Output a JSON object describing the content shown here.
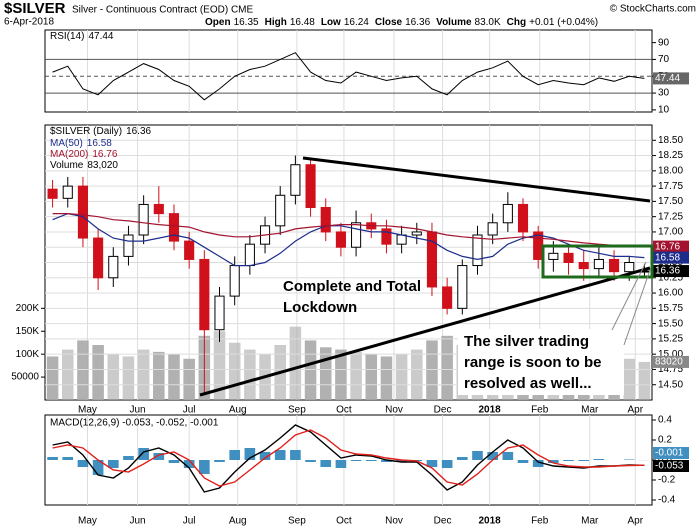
{
  "header": {
    "symbol": "$SILVER",
    "description": "Silver - Continuous Contract (EOD) CME",
    "date": "6-Apr-2018",
    "credit": "© StockCharts.com",
    "quote": [
      {
        "label": "Open",
        "value": 16.35
      },
      {
        "label": "High",
        "value": 16.48
      },
      {
        "label": "Low",
        "value": 16.24
      },
      {
        "label": "Close",
        "value": 16.36
      },
      {
        "label": "Volume",
        "value": "83.0K"
      },
      {
        "label": "Chg",
        "value": "+0.01 (+0.04%)"
      }
    ]
  },
  "chart_data": {
    "type": "candlestick",
    "xlim": [
      -0.5,
      39.5
    ],
    "xticks": [
      {
        "value": 2.3,
        "label": "May"
      },
      {
        "value": 5.6,
        "label": "Jun"
      },
      {
        "value": 9.0,
        "label": "Jul"
      },
      {
        "value": 12.2,
        "label": "Aug"
      },
      {
        "value": 16.1,
        "label": "Sep"
      },
      {
        "value": 19.2,
        "label": "Oct"
      },
      {
        "value": 22.5,
        "label": "Nov"
      },
      {
        "value": 25.7,
        "label": "Dec"
      },
      {
        "value": 28.8,
        "label": "2018"
      },
      {
        "value": 32.1,
        "label": "Feb"
      },
      {
        "value": 35.4,
        "label": "Mar"
      },
      {
        "value": 38.4,
        "label": "Apr"
      }
    ],
    "grid": true,
    "price": {
      "name": "$SILVER (Daily)",
      "up_color": "#000000",
      "down_color": "#d0101a",
      "ylim": [
        14.25,
        18.75
      ],
      "yticks": [
        {
          "value": 14.5,
          "label": "14.50"
        },
        {
          "value": 14.75,
          "label": "14.75"
        },
        {
          "value": 15,
          "label": "15.00"
        },
        {
          "value": 15.25,
          "label": "15.25"
        },
        {
          "value": 15.5,
          "label": "15.50"
        },
        {
          "value": 15.75,
          "label": "15.75"
        },
        {
          "value": 16,
          "label": "16.00"
        },
        {
          "value": 16.25,
          "label": "16.25"
        },
        {
          "value": 16.5,
          "label": "16.50"
        },
        {
          "value": 16.75,
          "label": "16.75"
        },
        {
          "value": 17,
          "label": "17.00"
        },
        {
          "value": 17.25,
          "label": "17.25"
        },
        {
          "value": 17.5,
          "label": "17.50"
        },
        {
          "value": 17.75,
          "label": "17.75"
        },
        {
          "value": 18,
          "label": "18.00"
        },
        {
          "value": 18.25,
          "label": "18.25"
        },
        {
          "value": 18.5,
          "label": "18.50"
        }
      ],
      "open": [
        17.7,
        17.55,
        17.75,
        16.9,
        16.25,
        16.6,
        16.95,
        17.45,
        17.3,
        16.85,
        16.55,
        15.4,
        15.95,
        16.45,
        16.8,
        17.1,
        17.6,
        18.1,
        17.4,
        17.0,
        16.75,
        17.15,
        17.05,
        16.8,
        16.95,
        17.0,
        16.1,
        15.75,
        16.45,
        16.95,
        17.15,
        17.45,
        17.0,
        16.55,
        16.65,
        16.5,
        16.4,
        16.55,
        16.35,
        16.35
      ],
      "high": [
        17.85,
        17.9,
        17.9,
        17.05,
        16.75,
        17.1,
        17.6,
        17.75,
        17.45,
        17.0,
        16.7,
        16.1,
        16.6,
        16.95,
        17.25,
        17.75,
        18.25,
        18.2,
        17.55,
        17.15,
        17.35,
        17.3,
        17.2,
        17.1,
        17.15,
        17.15,
        16.25,
        16.55,
        17.1,
        17.3,
        17.65,
        17.55,
        17.1,
        16.85,
        16.8,
        16.7,
        16.75,
        16.7,
        16.6,
        16.48
      ],
      "low": [
        17.4,
        17.4,
        16.75,
        16.05,
        16.1,
        16.45,
        16.8,
        17.15,
        16.7,
        16.4,
        14.35,
        15.2,
        15.8,
        16.3,
        16.65,
        16.95,
        17.45,
        17.25,
        16.85,
        16.6,
        16.6,
        16.9,
        16.65,
        16.65,
        16.8,
        15.95,
        15.65,
        15.65,
        16.3,
        16.8,
        17.0,
        16.85,
        16.4,
        16.35,
        16.3,
        16.2,
        16.25,
        16.2,
        16.2,
        16.24
      ],
      "close": [
        17.55,
        17.75,
        16.9,
        16.25,
        16.6,
        16.95,
        17.45,
        17.3,
        16.85,
        16.55,
        15.4,
        15.95,
        16.45,
        16.8,
        17.1,
        17.6,
        18.1,
        17.4,
        17.0,
        16.75,
        17.15,
        17.05,
        16.8,
        16.95,
        17.0,
        16.1,
        15.75,
        16.45,
        16.95,
        17.15,
        17.45,
        17.0,
        16.55,
        16.65,
        16.5,
        16.4,
        16.55,
        16.35,
        16.5,
        16.36
      ]
    },
    "overlays": [
      {
        "name": "MA(50)",
        "color": "#1c2d8c",
        "values": [
          17.2,
          17.3,
          17.25,
          17.05,
          16.9,
          16.85,
          16.85,
          16.9,
          16.95,
          16.9,
          16.75,
          16.6,
          16.45,
          16.45,
          16.5,
          16.65,
          16.85,
          17.0,
          17.1,
          17.1,
          17.05,
          17.0,
          17.0,
          16.95,
          16.9,
          16.85,
          16.7,
          16.6,
          16.55,
          16.6,
          16.8,
          16.9,
          16.95,
          16.9,
          16.8,
          16.7,
          16.65,
          16.6,
          16.6,
          16.58
        ]
      },
      {
        "name": "MA(200)",
        "color": "#a3122f",
        "values": [
          17.3,
          17.3,
          17.28,
          17.25,
          17.2,
          17.18,
          17.15,
          17.12,
          17.1,
          17.08,
          17.0,
          16.95,
          16.92,
          16.92,
          16.95,
          16.98,
          17.05,
          17.08,
          17.1,
          17.12,
          17.12,
          17.1,
          17.1,
          17.08,
          17.05,
          17.0,
          16.95,
          16.92,
          16.9,
          16.88,
          16.9,
          16.92,
          16.9,
          16.88,
          16.85,
          16.82,
          16.8,
          16.78,
          16.77,
          16.76
        ]
      }
    ],
    "volume": {
      "name": "Volume",
      "value_label": "83,020",
      "color": "#a9a9a9",
      "ylim": [
        0,
        600000
      ],
      "yticks": [
        50000,
        {
          "value": 100000,
          "label": "100K"
        },
        {
          "value": 150000,
          "label": "150K"
        },
        {
          "value": 200000,
          "label": "200K"
        }
      ],
      "values": [
        95000,
        110000,
        130000,
        120000,
        100000,
        95000,
        110000,
        105000,
        100000,
        90000,
        140000,
        150000,
        125000,
        110000,
        100000,
        120000,
        160000,
        130000,
        115000,
        110000,
        105000,
        100000,
        95000,
        100000,
        110000,
        130000,
        140000,
        120000,
        110000,
        115000,
        130000,
        120000,
        105000,
        100000,
        95000,
        90000,
        100000,
        95000,
        90000,
        83020
      ]
    },
    "rsi": {
      "name": "RSI(14)",
      "color": "#000000",
      "ylim": [
        7.5,
        105
      ],
      "yticks": [
        10,
        30,
        50,
        70,
        90
      ],
      "values": [
        55,
        62,
        35,
        28,
        45,
        55,
        65,
        58,
        45,
        38,
        22,
        35,
        50,
        58,
        62,
        70,
        78,
        55,
        45,
        42,
        55,
        50,
        45,
        48,
        50,
        35,
        28,
        45,
        55,
        60,
        68,
        50,
        40,
        45,
        42,
        40,
        48,
        44,
        50,
        47.44
      ]
    },
    "macd": {
      "legend": "MACD(12,26,9) -0.053, -0.052, -0.001",
      "ylim": [
        -0.45,
        0.45
      ],
      "yticks": [
        {
          "value": -0.4,
          "label": "-0.4"
        },
        {
          "value": -0.2,
          "label": "-0.2"
        },
        {
          "value": 0,
          "label": "0.0"
        },
        {
          "value": 0.2,
          "label": "0.2"
        },
        {
          "value": 0.4,
          "label": "0.4"
        }
      ],
      "series": [
        {
          "name": "MACD",
          "color": "#000000",
          "values": [
            0.15,
            0.18,
            0.05,
            -0.15,
            -0.18,
            -0.08,
            0.08,
            0.12,
            0.05,
            -0.08,
            -0.32,
            -0.28,
            -0.12,
            0.02,
            0.1,
            0.22,
            0.35,
            0.28,
            0.15,
            0.02,
            0.05,
            0.04,
            0.0,
            -0.02,
            -0.02,
            -0.15,
            -0.3,
            -0.22,
            -0.05,
            0.08,
            0.2,
            0.12,
            -0.02,
            -0.06,
            -0.07,
            -0.08,
            -0.06,
            -0.06,
            -0.05,
            -0.053
          ]
        },
        {
          "name": "Signal",
          "color": "#e0201b",
          "values": [
            0.12,
            0.15,
            0.12,
            0.0,
            -0.1,
            -0.12,
            -0.04,
            0.05,
            0.08,
            0.0,
            -0.18,
            -0.26,
            -0.22,
            -0.1,
            0.02,
            0.12,
            0.25,
            0.3,
            0.22,
            0.1,
            0.06,
            0.05,
            0.02,
            0.0,
            -0.01,
            -0.08,
            -0.22,
            -0.25,
            -0.14,
            0.0,
            0.12,
            0.15,
            0.05,
            -0.03,
            -0.06,
            -0.07,
            -0.07,
            -0.06,
            -0.055,
            -0.052
          ]
        }
      ],
      "histogram": {
        "color": "#3f8fc0",
        "values": [
          0.03,
          0.03,
          -0.07,
          -0.15,
          -0.08,
          0.04,
          0.12,
          0.07,
          -0.03,
          -0.08,
          -0.14,
          -0.02,
          0.1,
          0.12,
          0.08,
          0.1,
          0.1,
          -0.02,
          -0.07,
          -0.08,
          -0.01,
          -0.01,
          -0.02,
          -0.02,
          -0.01,
          -0.07,
          -0.08,
          0.03,
          0.09,
          0.08,
          0.08,
          -0.03,
          -0.07,
          -0.03,
          -0.01,
          -0.01,
          0.01,
          0.0,
          0.005,
          -0.001
        ]
      }
    },
    "annotations": [
      {
        "lines": [
          "Complete and Total",
          "Lockdown"
        ]
      },
      {
        "lines": [
          "The silver trading",
          "range is soon to be",
          "resolved as well..."
        ]
      }
    ]
  }
}
